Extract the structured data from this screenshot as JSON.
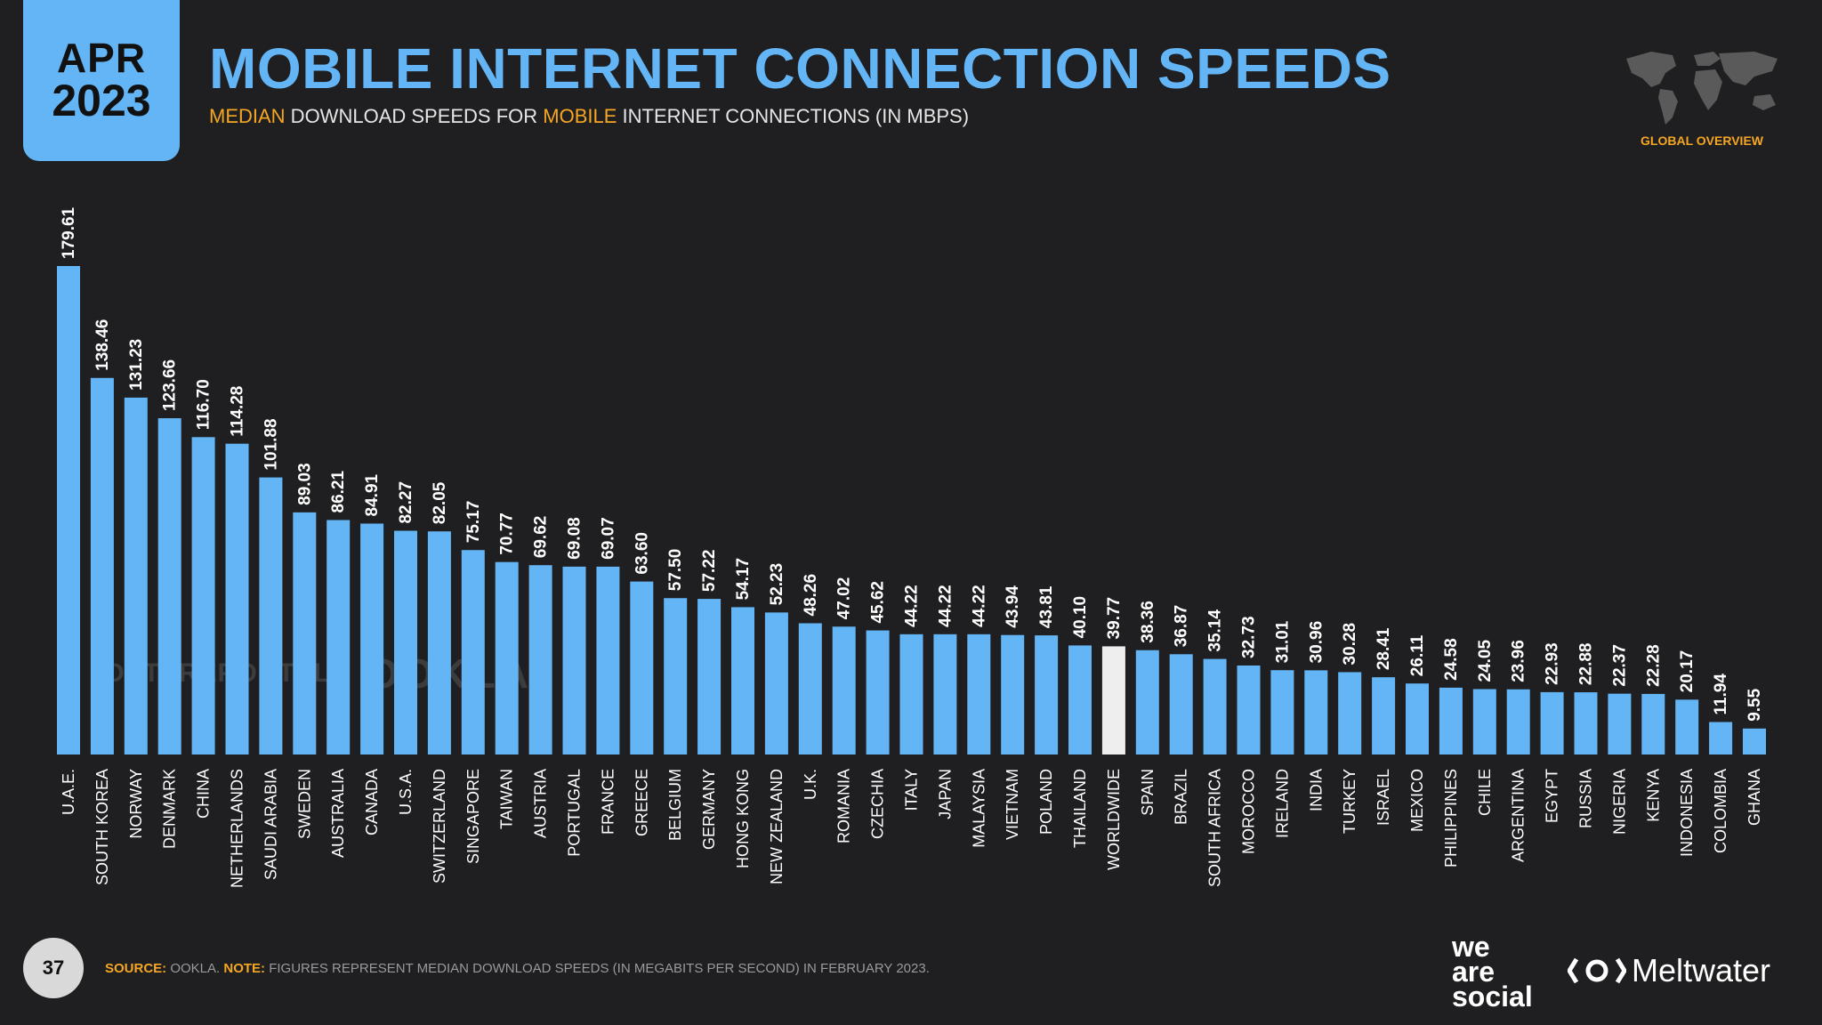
{
  "header": {
    "date_month": "APR",
    "date_year": "2023",
    "title": "MOBILE INTERNET CONNECTION SPEEDS",
    "subtitle_part1": "MEDIAN",
    "subtitle_part2": " DOWNLOAD SPEEDS FOR ",
    "subtitle_part3": "MOBILE",
    "subtitle_part4": " INTERNET CONNECTIONS (IN MBPS)",
    "section_label": "GLOBAL OVERVIEW"
  },
  "watermarks": {
    "left": "DATAREPORTAL",
    "right": "OOKLA"
  },
  "footer": {
    "page_number": "37",
    "source_key": "SOURCE:",
    "source_text": " OOKLA. ",
    "note_key": "NOTE:",
    "note_text": " FIGURES REPRESENT MEDIAN DOWNLOAD SPEEDS (IN MEGABITS PER SECOND) IN FEBRUARY 2023.",
    "logo_left": "we are social",
    "logo_right": "Meltwater"
  },
  "colors": {
    "bar": "#64b5f6",
    "highlight_bar": "#eeeeee",
    "accent": "#f5a623",
    "background": "#1f1f21"
  },
  "chart_data": {
    "type": "bar",
    "categories": [
      "U.A.E.",
      "SOUTH KOREA",
      "NORWAY",
      "DENMARK",
      "CHINA",
      "NETHERLANDS",
      "SAUDI ARABIA",
      "SWEDEN",
      "AUSTRALIA",
      "CANADA",
      "U.S.A.",
      "SWITZERLAND",
      "SINGAPORE",
      "TAIWAN",
      "AUSTRIA",
      "PORTUGAL",
      "FRANCE",
      "GREECE",
      "BELGIUM",
      "GERMANY",
      "HONG KONG",
      "NEW ZEALAND",
      "U.K.",
      "ROMANIA",
      "CZECHIA",
      "ITALY",
      "JAPAN",
      "MALAYSIA",
      "VIETNAM",
      "POLAND",
      "THAILAND",
      "WORLDWIDE",
      "SPAIN",
      "BRAZIL",
      "SOUTH AFRICA",
      "MOROCCO",
      "IRELAND",
      "INDIA",
      "TURKEY",
      "ISRAEL",
      "MEXICO",
      "PHILIPPINES",
      "CHILE",
      "ARGENTINA",
      "EGYPT",
      "RUSSIA",
      "NIGERIA",
      "KENYA",
      "INDONESIA",
      "COLOMBIA",
      "GHANA"
    ],
    "values": [
      179.61,
      138.46,
      131.23,
      123.66,
      116.7,
      114.28,
      101.88,
      89.03,
      86.21,
      84.91,
      82.27,
      82.05,
      75.17,
      70.77,
      69.62,
      69.08,
      69.07,
      63.6,
      57.5,
      57.22,
      54.17,
      52.23,
      48.26,
      47.02,
      45.62,
      44.22,
      44.22,
      44.22,
      43.94,
      43.81,
      40.1,
      39.77,
      38.36,
      36.87,
      35.14,
      32.73,
      31.01,
      30.96,
      30.28,
      28.41,
      26.11,
      24.58,
      24.05,
      23.96,
      22.93,
      22.88,
      22.37,
      22.28,
      20.17,
      11.94,
      9.55
    ],
    "value_labels": [
      "179.61",
      "138.46",
      "131.23",
      "123.66",
      "116.70",
      "114.28",
      "101.88",
      "89.03",
      "86.21",
      "84.91",
      "82.27",
      "82.05",
      "75.17",
      "70.77",
      "69.62",
      "69.08",
      "69.07",
      "63.60",
      "57.50",
      "57.22",
      "54.17",
      "52.23",
      "48.26",
      "47.02",
      "45.62",
      "44.22",
      "44.22",
      "44.22",
      "43.94",
      "43.81",
      "40.10",
      "39.77",
      "38.36",
      "36.87",
      "35.14",
      "32.73",
      "31.01",
      "30.96",
      "30.28",
      "28.41",
      "26.11",
      "24.58",
      "24.05",
      "23.96",
      "22.93",
      "22.88",
      "22.37",
      "22.28",
      "20.17",
      "11.94",
      "9.55"
    ],
    "highlight_category": "WORLDWIDE",
    "title": "MOBILE INTERNET CONNECTION SPEEDS",
    "xlabel": "",
    "ylabel": "",
    "ylim": [
      0,
      179.61
    ],
    "grid": false,
    "legend": "none"
  }
}
